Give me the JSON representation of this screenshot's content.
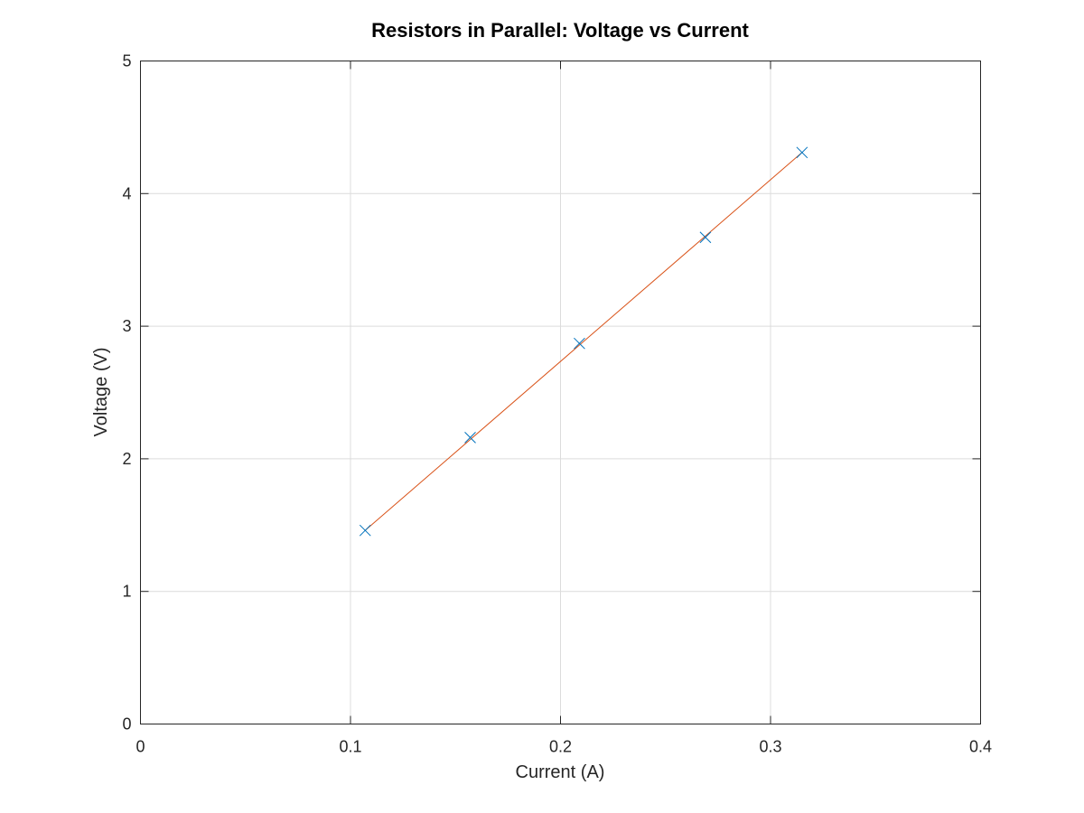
{
  "chart_data": {
    "type": "scatter",
    "title": "Resistors in Parallel: Voltage vs Current",
    "xlabel": "Current (A)",
    "ylabel": "Voltage (V)",
    "xlim": [
      0,
      0.4
    ],
    "ylim": [
      0,
      5
    ],
    "xticks": [
      0,
      0.1,
      0.2,
      0.3,
      0.4
    ],
    "xtick_labels": [
      "0",
      "0.1",
      "0.2",
      "0.3",
      "0.4"
    ],
    "yticks": [
      0,
      1,
      2,
      3,
      4,
      5
    ],
    "ytick_labels": [
      "0",
      "1",
      "2",
      "3",
      "4",
      "5"
    ],
    "grid": true,
    "series": [
      {
        "type": "scatter",
        "marker": "x",
        "color": "#0072bd",
        "x": [
          0.107,
          0.157,
          0.209,
          0.269,
          0.315
        ],
        "y": [
          1.46,
          2.16,
          2.87,
          3.67,
          4.31
        ]
      },
      {
        "type": "line",
        "color": "#d95319",
        "x": [
          0.107,
          0.315
        ],
        "y": [
          1.46,
          4.31
        ]
      }
    ]
  }
}
